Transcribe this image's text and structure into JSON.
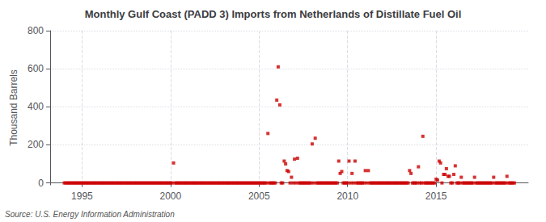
{
  "chart_data": {
    "type": "scatter",
    "title": "Monthly Gulf Coast (PADD 3) Imports from Netherlands of Distillate Fuel Oil",
    "ylabel": "Thousand Barrels",
    "annotation": "Source: U.S. Energy Information Administration",
    "color": "#cc0000",
    "marker": "square",
    "grid": true,
    "xlim": [
      1993.2,
      2020.2
    ],
    "xticks": [
      1995,
      2000,
      2005,
      2010,
      2015
    ],
    "ylim": [
      -10,
      800
    ],
    "yticks": [
      0,
      200,
      400,
      600,
      800
    ],
    "x": [
      1994.0,
      1994.08,
      1994.17,
      1994.25,
      1994.33,
      1994.42,
      1994.5,
      1994.58,
      1994.67,
      1994.75,
      1994.83,
      1994.92,
      1995.0,
      1995.08,
      1995.17,
      1995.25,
      1995.33,
      1995.42,
      1995.5,
      1995.58,
      1995.67,
      1995.75,
      1995.83,
      1995.92,
      1996.0,
      1996.08,
      1996.17,
      1996.25,
      1996.33,
      1996.42,
      1996.5,
      1996.58,
      1996.67,
      1996.75,
      1996.83,
      1996.92,
      1997.0,
      1997.08,
      1997.17,
      1997.25,
      1997.33,
      1997.42,
      1997.5,
      1997.58,
      1997.67,
      1997.75,
      1997.83,
      1997.92,
      1998.0,
      1998.08,
      1998.17,
      1998.25,
      1998.33,
      1998.42,
      1998.5,
      1998.58,
      1998.67,
      1998.75,
      1998.83,
      1998.92,
      1999.0,
      1999.08,
      1999.17,
      1999.25,
      1999.33,
      1999.42,
      1999.5,
      1999.58,
      1999.67,
      1999.75,
      1999.83,
      1999.92,
      2000.0,
      2000.08,
      2000.17,
      2000.25,
      2000.33,
      2000.42,
      2000.5,
      2000.58,
      2000.67,
      2000.75,
      2000.83,
      2000.92,
      2001.0,
      2001.08,
      2001.17,
      2001.25,
      2001.33,
      2001.42,
      2001.5,
      2001.58,
      2001.67,
      2001.75,
      2001.83,
      2001.92,
      2002.0,
      2002.08,
      2002.17,
      2002.25,
      2002.33,
      2002.42,
      2002.5,
      2002.58,
      2002.67,
      2002.75,
      2002.83,
      2002.92,
      2003.0,
      2003.08,
      2003.17,
      2003.25,
      2003.33,
      2003.42,
      2003.5,
      2003.58,
      2003.67,
      2003.75,
      2003.83,
      2003.92,
      2004.0,
      2004.08,
      2004.17,
      2004.25,
      2004.33,
      2004.42,
      2004.5,
      2004.58,
      2004.67,
      2004.75,
      2004.83,
      2004.92,
      2005.0,
      2005.08,
      2005.17,
      2005.25,
      2005.33,
      2005.42,
      2005.5,
      2005.58,
      2005.67,
      2005.75,
      2005.83,
      2005.92,
      2006.0,
      2006.08,
      2006.17,
      2006.25,
      2006.33,
      2006.42,
      2006.5,
      2006.58,
      2006.67,
      2006.75,
      2006.83,
      2006.92,
      2007.0,
      2007.08,
      2007.17,
      2007.25,
      2007.33,
      2007.42,
      2007.5,
      2007.58,
      2007.67,
      2007.75,
      2007.83,
      2007.92,
      2008.0,
      2008.08,
      2008.17,
      2008.25,
      2008.33,
      2008.42,
      2008.5,
      2008.58,
      2008.67,
      2008.75,
      2008.83,
      2008.92,
      2009.0,
      2009.08,
      2009.17,
      2009.25,
      2009.33,
      2009.42,
      2009.5,
      2009.58,
      2009.67,
      2009.75,
      2009.83,
      2009.92,
      2010.0,
      2010.08,
      2010.17,
      2010.25,
      2010.33,
      2010.42,
      2010.5,
      2010.58,
      2010.67,
      2010.75,
      2010.83,
      2010.92,
      2011.0,
      2011.08,
      2011.17,
      2011.25,
      2011.33,
      2011.42,
      2011.5,
      2011.58,
      2011.67,
      2011.75,
      2011.83,
      2011.92,
      2012.0,
      2012.08,
      2012.17,
      2012.25,
      2012.33,
      2012.42,
      2012.5,
      2012.58,
      2012.67,
      2012.75,
      2012.83,
      2012.92,
      2013.0,
      2013.08,
      2013.17,
      2013.25,
      2013.33,
      2013.42,
      2013.5,
      2013.58,
      2013.67,
      2013.75,
      2013.83,
      2013.92,
      2014.0,
      2014.08,
      2014.17,
      2014.25,
      2014.33,
      2014.42,
      2014.5,
      2014.58,
      2014.67,
      2014.75,
      2014.83,
      2014.92,
      2015.0,
      2015.08,
      2015.17,
      2015.25,
      2015.33,
      2015.42,
      2015.5,
      2015.58,
      2015.67,
      2015.75,
      2015.83,
      2015.92,
      2016.0,
      2016.08,
      2016.17,
      2016.25,
      2016.33,
      2016.42,
      2016.5,
      2016.58,
      2016.67,
      2016.75,
      2016.83,
      2016.92,
      2017.0,
      2017.08,
      2017.17,
      2017.25,
      2017.33,
      2017.42,
      2017.5,
      2017.58,
      2017.67,
      2017.75,
      2017.83,
      2017.92,
      2018.0,
      2018.08,
      2018.17,
      2018.25,
      2018.33,
      2018.42,
      2018.5,
      2018.58,
      2018.67,
      2018.75,
      2018.83,
      2018.92,
      2019.0,
      2019.08,
      2019.17,
      2019.25,
      2019.33,
      2019.42
    ],
    "values": [
      0,
      0,
      0,
      0,
      0,
      0,
      0,
      0,
      0,
      0,
      0,
      0,
      0,
      0,
      0,
      0,
      0,
      0,
      0,
      0,
      0,
      0,
      0,
      0,
      0,
      0,
      0,
      0,
      0,
      0,
      0,
      0,
      0,
      0,
      0,
      0,
      0,
      0,
      0,
      0,
      0,
      0,
      0,
      0,
      0,
      0,
      0,
      0,
      0,
      0,
      0,
      0,
      0,
      0,
      0,
      0,
      0,
      0,
      0,
      0,
      0,
      0,
      0,
      0,
      0,
      0,
      0,
      0,
      0,
      0,
      0,
      0,
      0,
      0,
      105,
      0,
      0,
      0,
      0,
      0,
      0,
      0,
      0,
      0,
      0,
      0,
      0,
      0,
      0,
      0,
      0,
      0,
      0,
      0,
      0,
      0,
      0,
      0,
      0,
      0,
      0,
      0,
      0,
      0,
      0,
      0,
      0,
      0,
      0,
      0,
      0,
      0,
      0,
      0,
      0,
      0,
      0,
      0,
      0,
      0,
      0,
      0,
      0,
      0,
      0,
      0,
      0,
      0,
      0,
      0,
      0,
      0,
      0,
      0,
      0,
      0,
      0,
      0,
      260,
      0,
      0,
      0,
      0,
      0,
      435,
      610,
      410,
      0,
      0,
      115,
      100,
      65,
      60,
      0,
      30,
      0,
      125,
      0,
      130,
      0,
      0,
      0,
      0,
      0,
      0,
      0,
      0,
      0,
      205,
      0,
      235,
      0,
      0,
      0,
      0,
      0,
      0,
      0,
      0,
      0,
      0,
      0,
      0,
      0,
      0,
      0,
      115,
      50,
      60,
      0,
      0,
      0,
      0,
      115,
      0,
      50,
      0,
      115,
      0,
      0,
      0,
      0,
      0,
      0,
      65,
      0,
      65,
      0,
      0,
      0,
      0,
      0,
      0,
      0,
      0,
      0,
      0,
      0,
      0,
      0,
      0,
      0,
      0,
      0,
      0,
      0,
      0,
      0,
      0,
      0,
      0,
      0,
      0,
      0,
      65,
      50,
      0,
      0,
      0,
      0,
      85,
      0,
      0,
      245,
      0,
      0,
      0,
      0,
      0,
      0,
      0,
      0,
      20,
      15,
      115,
      105,
      0,
      45,
      45,
      75,
      35,
      35,
      0,
      0,
      45,
      90,
      0,
      0,
      0,
      30,
      0,
      0,
      0,
      0,
      0,
      0,
      0,
      0,
      30,
      0,
      0,
      0,
      0,
      0,
      0,
      0,
      0,
      0,
      0,
      0,
      0,
      30,
      0,
      0,
      0,
      0,
      0,
      0,
      0,
      0,
      35,
      0,
      0,
      0,
      0,
      0
    ]
  }
}
